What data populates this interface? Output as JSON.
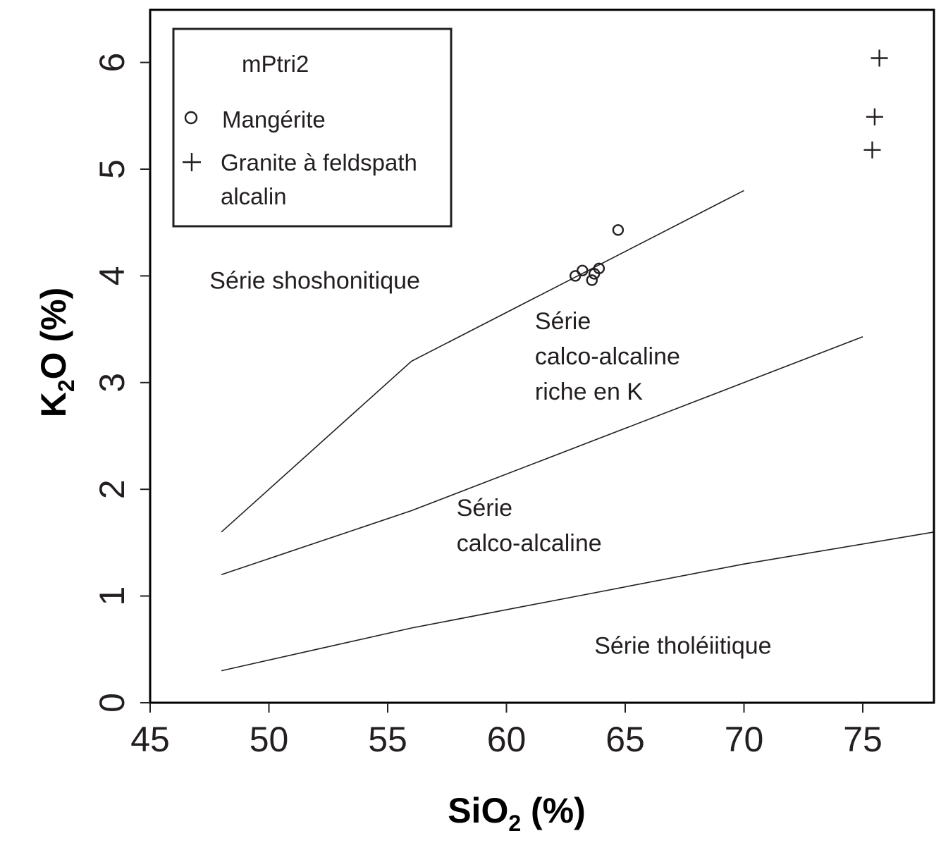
{
  "chart_data": {
    "type": "scatter",
    "xlabel_main": "SiO",
    "xlabel_sub": "2",
    "xlabel_tail": " (%)",
    "ylabel_main": "K",
    "ylabel_sub": "2",
    "ylabel_tail": "O (%)",
    "xlim": [
      45,
      78
    ],
    "ylim": [
      0,
      6.5
    ],
    "xticks": [
      45,
      50,
      55,
      60,
      65,
      70,
      75
    ],
    "yticks": [
      0,
      1,
      2,
      3,
      4,
      5,
      6
    ],
    "legend": {
      "title": "mPtri2",
      "entries": [
        {
          "marker": "circle",
          "label_lines": [
            "Mangérite"
          ]
        },
        {
          "marker": "plus",
          "label_lines": [
            "Granite à feldspath",
            "alcalin"
          ]
        }
      ]
    },
    "boundaries": [
      {
        "points": [
          [
            48,
            1.6
          ],
          [
            56,
            3.2
          ],
          [
            70,
            4.8
          ]
        ]
      },
      {
        "points": [
          [
            48,
            1.2
          ],
          [
            52,
            1.5
          ],
          [
            56,
            1.8
          ],
          [
            70,
            3.0
          ],
          [
            75,
            3.43
          ]
        ]
      },
      {
        "points": [
          [
            48,
            0.3
          ],
          [
            52,
            0.5
          ],
          [
            56,
            0.7
          ],
          [
            63,
            1.0
          ],
          [
            70,
            1.3
          ],
          [
            78,
            1.6
          ]
        ]
      }
    ],
    "regions": [
      {
        "lines": [
          "Série shoshonitique"
        ],
        "at": [
          47.5,
          3.88
        ]
      },
      {
        "lines": [
          "Série",
          "calco-alcaline",
          "riche en K"
        ],
        "at": [
          61.2,
          3.5
        ]
      },
      {
        "lines": [
          "Série",
          "calco-alcaline"
        ],
        "at": [
          57.9,
          1.75
        ]
      },
      {
        "lines": [
          "Série tholéiitique"
        ],
        "at": [
          63.7,
          0.46
        ]
      }
    ],
    "series": [
      {
        "name": "Mangérite",
        "marker": "circle",
        "points": [
          [
            62.9,
            4.0
          ],
          [
            63.2,
            4.05
          ],
          [
            63.6,
            3.96
          ],
          [
            63.7,
            4.02
          ],
          [
            63.9,
            4.07
          ],
          [
            64.7,
            4.43
          ]
        ]
      },
      {
        "name": "Granite à feldspath alcalin",
        "marker": "plus",
        "points": [
          [
            75.7,
            6.04
          ],
          [
            75.5,
            5.49
          ],
          [
            75.4,
            5.18
          ]
        ]
      }
    ],
    "grid": false,
    "legend_placement": "top-left"
  }
}
